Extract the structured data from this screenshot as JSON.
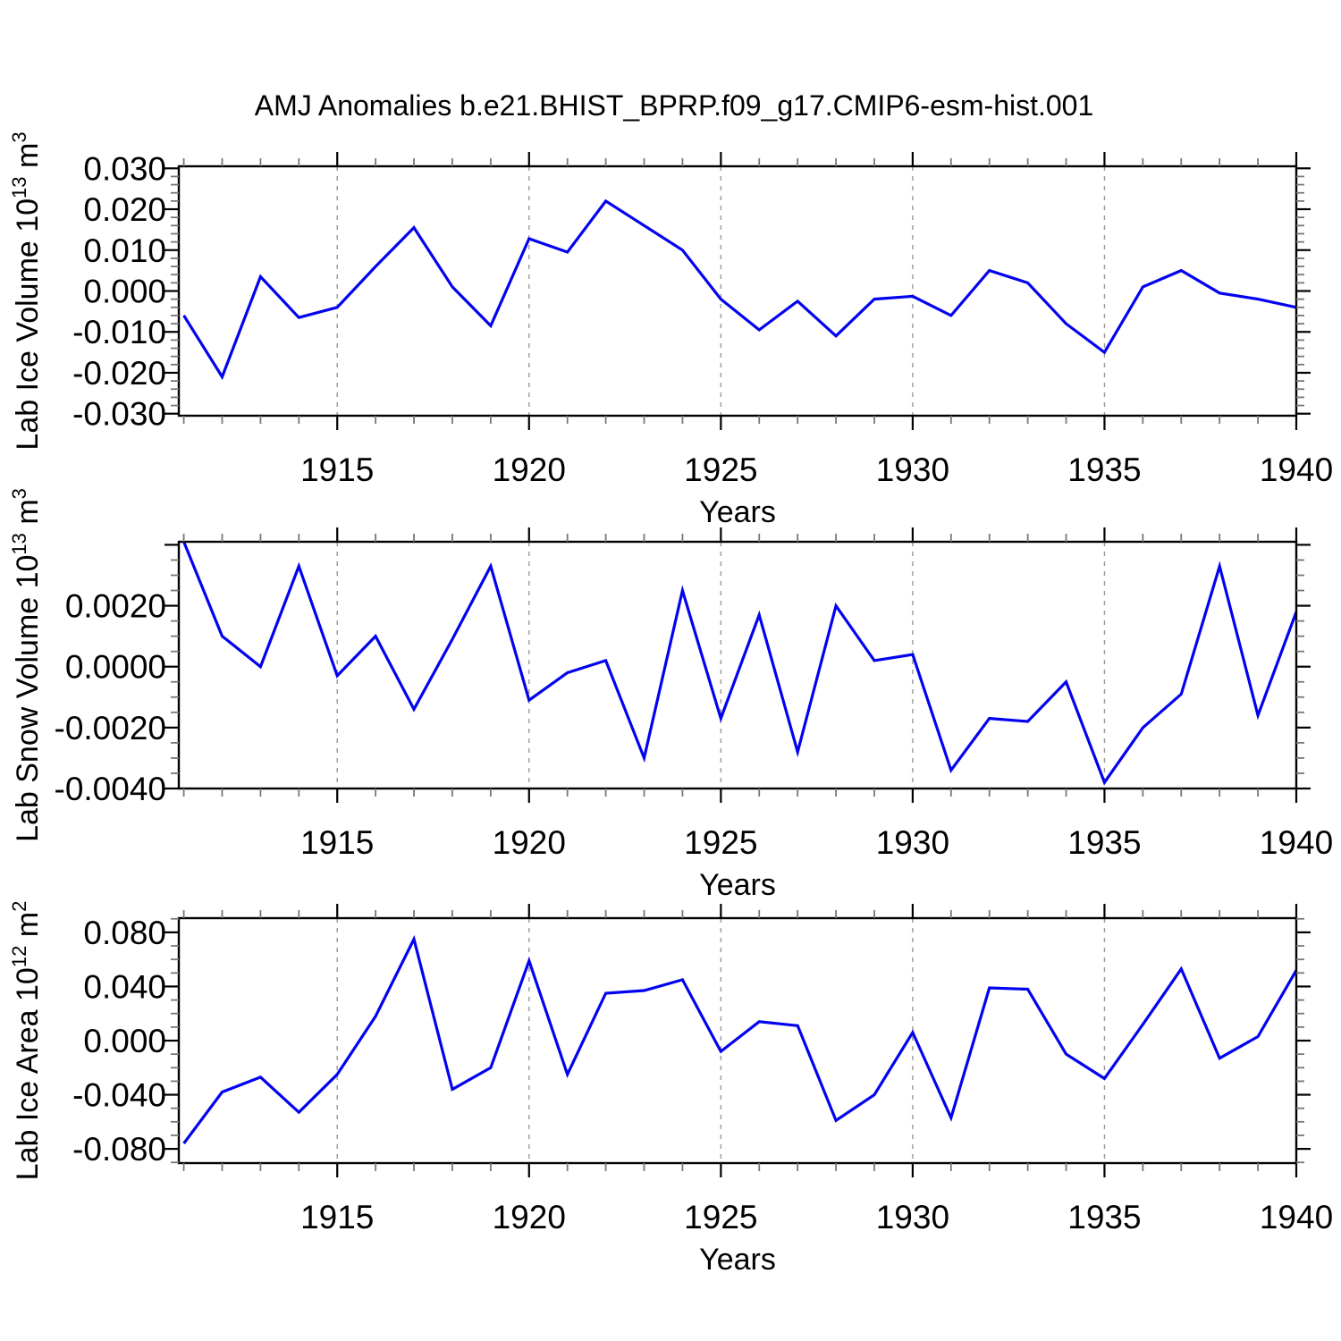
{
  "figure": {
    "title": "AMJ Anomalies b.e21.BHIST_BPRP.f09_g17.CMIP6-esm-hist.001",
    "background": "#ffffff",
    "line_color": "#0202f0",
    "frame_color": "#000000",
    "grid_color": "#999999"
  },
  "x_axis": {
    "label": "Years",
    "min": 1910.87,
    "max": 1940,
    "years": [
      1911,
      1912,
      1913,
      1914,
      1915,
      1916,
      1917,
      1918,
      1919,
      1920,
      1921,
      1922,
      1923,
      1924,
      1925,
      1926,
      1927,
      1928,
      1929,
      1930,
      1931,
      1932,
      1933,
      1934,
      1935,
      1936,
      1937,
      1938,
      1939,
      1940
    ],
    "major_ticks": [
      1915,
      1920,
      1925,
      1930,
      1935,
      1940
    ],
    "major_labels": [
      "1915",
      "1920",
      "1925",
      "1930",
      "1935",
      "1940"
    ],
    "minor_step": 1,
    "gridlines": [
      1915,
      1920,
      1925,
      1930,
      1935
    ],
    "grid_style": "dashed"
  },
  "chart_data": [
    {
      "type": "line",
      "id": "lab-ice-volume",
      "ylabel": "Lab Ice Volume 10^13 m^3",
      "ylabel_rich": [
        [
          "Lab Ice Volume 10",
          0
        ],
        [
          "13",
          1
        ],
        [
          " m",
          0
        ],
        [
          "3",
          1
        ]
      ],
      "legend": "none",
      "grid": "vertical-dashed",
      "ylim": [
        -0.0305,
        0.0305
      ],
      "ymajor_step": 0.01,
      "yminor_step": 0.002,
      "ytick_values": [
        0.03,
        0.02,
        0.01,
        0.0,
        -0.01,
        -0.02,
        -0.03
      ],
      "ytick_labels": [
        "0.030",
        "0.020",
        "0.010",
        "0.000",
        "-0.010",
        "-0.020",
        "-0.030"
      ],
      "ytick_extra": [],
      "values": [
        -0.006,
        -0.021,
        0.0035,
        -0.0065,
        -0.004,
        0.006,
        0.0155,
        0.001,
        -0.0085,
        0.0128,
        0.0095,
        0.022,
        0.016,
        0.01,
        -0.002,
        -0.0095,
        -0.0025,
        -0.011,
        -0.002,
        -0.0013,
        -0.006,
        0.005,
        0.002,
        -0.008,
        -0.015,
        0.001,
        0.005,
        -0.0005,
        -0.002,
        -0.004
      ]
    },
    {
      "type": "line",
      "id": "lab-snow-volume",
      "ylabel": "Lab Snow Volume 10^13 m^3",
      "ylabel_rich": [
        [
          "Lab Snow Volume 10",
          0
        ],
        [
          "13",
          1
        ],
        [
          " m",
          0
        ],
        [
          "3",
          1
        ]
      ],
      "legend": "none",
      "grid": "vertical-dashed",
      "ylim": [
        -0.004,
        0.0041
      ],
      "ymajor_step": 0.002,
      "yminor_step": 0.0005,
      "ytick_values": [
        0.002,
        0.0,
        -0.002,
        -0.004
      ],
      "ytick_labels": [
        "0.0020",
        "0.0000",
        "-0.0020",
        "-0.0040"
      ],
      "ytick_extra": [
        0.004
      ],
      "values": [
        0.0041,
        0.001,
        0.0,
        0.0033,
        -0.0003,
        0.001,
        -0.0014,
        0.0009,
        0.0033,
        -0.0011,
        -0.0002,
        0.0002,
        -0.003,
        0.0025,
        -0.0017,
        0.0017,
        -0.0028,
        0.002,
        0.0002,
        0.0004,
        -0.0034,
        -0.0017,
        -0.0018,
        -0.0005,
        -0.0038,
        -0.002,
        -0.0009,
        0.0033,
        -0.0016,
        0.0018
      ]
    },
    {
      "type": "line",
      "id": "lab-ice-area",
      "ylabel": "Lab Ice Area 10^12 m^2",
      "ylabel_rich": [
        [
          "Lab Ice Area 10",
          0
        ],
        [
          "12",
          1
        ],
        [
          " m",
          0
        ],
        [
          "2",
          1
        ]
      ],
      "legend": "none",
      "grid": "vertical-dashed",
      "ylim": [
        -0.0905,
        0.0905
      ],
      "ymajor_step": 0.04,
      "yminor_step": 0.01,
      "ytick_values": [
        0.08,
        0.04,
        0.0,
        -0.04,
        -0.08
      ],
      "ytick_labels": [
        "0.080",
        "0.040",
        "0.000",
        "-0.040",
        "-0.080"
      ],
      "ytick_extra": [],
      "values": [
        -0.076,
        -0.038,
        -0.027,
        -0.053,
        -0.025,
        0.018,
        0.075,
        -0.036,
        -0.02,
        0.059,
        -0.025,
        0.035,
        0.037,
        0.045,
        -0.008,
        0.014,
        0.011,
        -0.059,
        -0.04,
        0.006,
        -0.057,
        0.039,
        0.038,
        -0.01,
        -0.028,
        0.012,
        0.053,
        -0.013,
        0.003,
        0.052
      ]
    }
  ]
}
